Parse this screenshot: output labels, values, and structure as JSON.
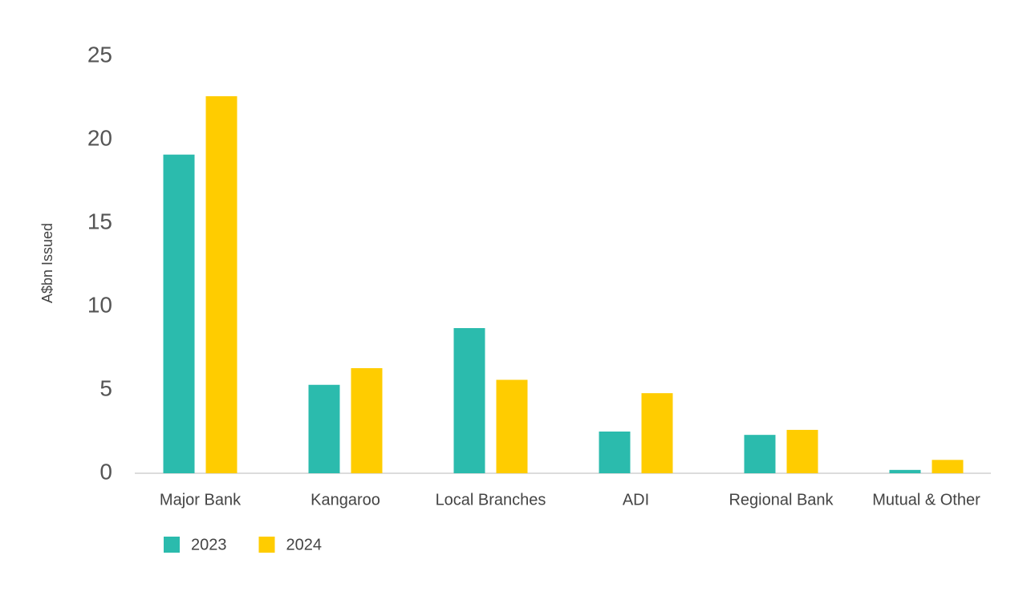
{
  "chart_data": {
    "type": "bar",
    "y_label": "A$bn Issued",
    "categories": [
      "Major Bank",
      "Kangaroo",
      "Local Branches",
      "ADI",
      "Regional Bank",
      "Mutual & Other"
    ],
    "series": [
      {
        "name": "2023",
        "color": "#2bbbad",
        "values": [
          19.1,
          5.3,
          8.7,
          2.5,
          2.3,
          0.2
        ]
      },
      {
        "name": "2024",
        "color": "#ffcc00",
        "values": [
          22.6,
          6.3,
          5.6,
          4.8,
          2.6,
          0.8
        ]
      }
    ],
    "ylim": [
      0,
      25
    ],
    "yticks": [
      0,
      5,
      10,
      15,
      20,
      25
    ],
    "grid": false,
    "legend": "bottom-left"
  }
}
